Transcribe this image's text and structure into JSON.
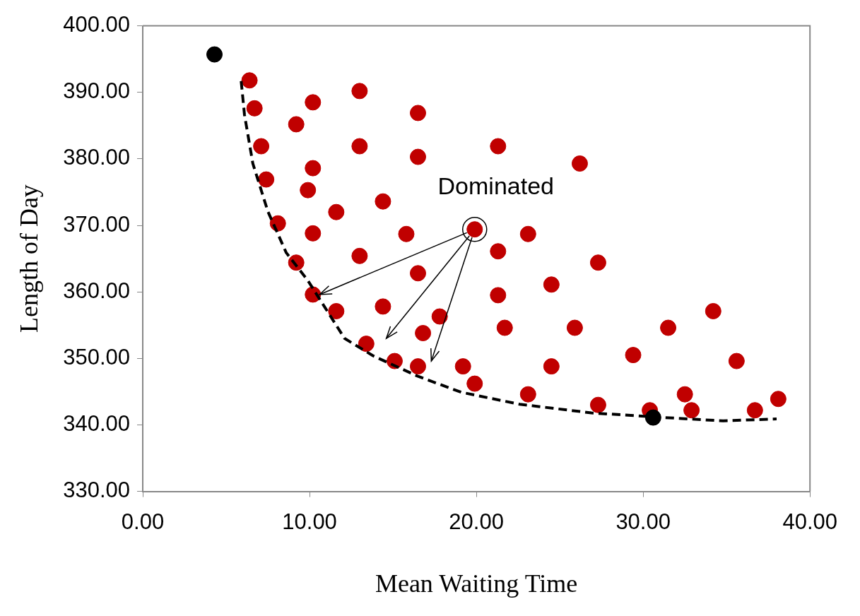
{
  "chart_data": {
    "type": "scatter",
    "xlabel": "Mean Waiting Time",
    "ylabel": "Length of Day",
    "xlim": [
      0,
      40
    ],
    "ylim": [
      330,
      400
    ],
    "xticks": [
      {
        "value": 0,
        "label": "0.00"
      },
      {
        "value": 10,
        "label": "10.00"
      },
      {
        "value": 20,
        "label": "20.00"
      },
      {
        "value": 30,
        "label": "30.00"
      },
      {
        "value": 40,
        "label": "40.00"
      }
    ],
    "yticks": [
      {
        "value": 330,
        "label": "330.00"
      },
      {
        "value": 340,
        "label": "340.00"
      },
      {
        "value": 350,
        "label": "350.00"
      },
      {
        "value": 360,
        "label": "360.00"
      },
      {
        "value": 370,
        "label": "370.00"
      },
      {
        "value": 380,
        "label": "380.00"
      },
      {
        "value": 390,
        "label": "390.00"
      },
      {
        "value": 400,
        "label": "400.00"
      }
    ],
    "grid": false,
    "legend": false,
    "marker": "circle",
    "annotations": [
      {
        "text": "Dominated",
        "x": 19.9,
        "y": 369.4
      }
    ],
    "series": [
      {
        "type": "line",
        "color": "#000000",
        "line_style": "dashed",
        "marker": "none",
        "x": [
          5.9,
          6.1,
          6.6,
          7.5,
          8.6,
          9.9,
          12.1,
          13.8,
          16.5,
          19.1,
          22.6,
          26.9,
          31.3,
          34.8,
          38.0
        ],
        "values": [
          391.7,
          386.6,
          379.3,
          372.1,
          365.9,
          361.7,
          353.0,
          350.4,
          347.3,
          344.9,
          343.1,
          341.8,
          341.1,
          340.6,
          340.9
        ]
      },
      {
        "color": "#000000",
        "x": [
          4.3,
          30.6
        ],
        "values": [
          395.7,
          341.1
        ]
      },
      {
        "color": "#c00000",
        "x": [
          6.4,
          6.7,
          7.1,
          7.4,
          8.1,
          9.2,
          10.2,
          9.2,
          10.2,
          10.2,
          9.9,
          10.2,
          11.6,
          11.6,
          13.0,
          13.0,
          13.0,
          13.4,
          14.4,
          14.4,
          15.1,
          15.8,
          16.5,
          16.5,
          16.5,
          16.5,
          16.8,
          17.8,
          19.9,
          19.2,
          19.9,
          21.3,
          21.3,
          21.3,
          21.7,
          23.1,
          23.1,
          24.5,
          24.5,
          25.9,
          26.2,
          27.3,
          27.3,
          29.4,
          30.4,
          31.5,
          32.5,
          32.9,
          34.2,
          35.6,
          36.7,
          38.1
        ],
        "values": [
          391.8,
          387.6,
          381.9,
          376.9,
          370.3,
          364.4,
          359.6,
          385.2,
          388.5,
          378.6,
          375.3,
          368.8,
          372.0,
          357.1,
          390.2,
          381.9,
          365.4,
          352.2,
          373.6,
          357.8,
          349.6,
          368.7,
          386.9,
          380.3,
          362.8,
          348.8,
          353.8,
          356.3,
          369.4,
          348.8,
          346.2,
          381.9,
          366.1,
          359.5,
          354.6,
          368.7,
          344.6,
          361.1,
          348.8,
          354.6,
          379.3,
          364.4,
          343.0,
          350.5,
          342.2,
          354.6,
          344.6,
          342.2,
          357.1,
          349.6,
          342.2,
          343.9
        ]
      }
    ]
  }
}
